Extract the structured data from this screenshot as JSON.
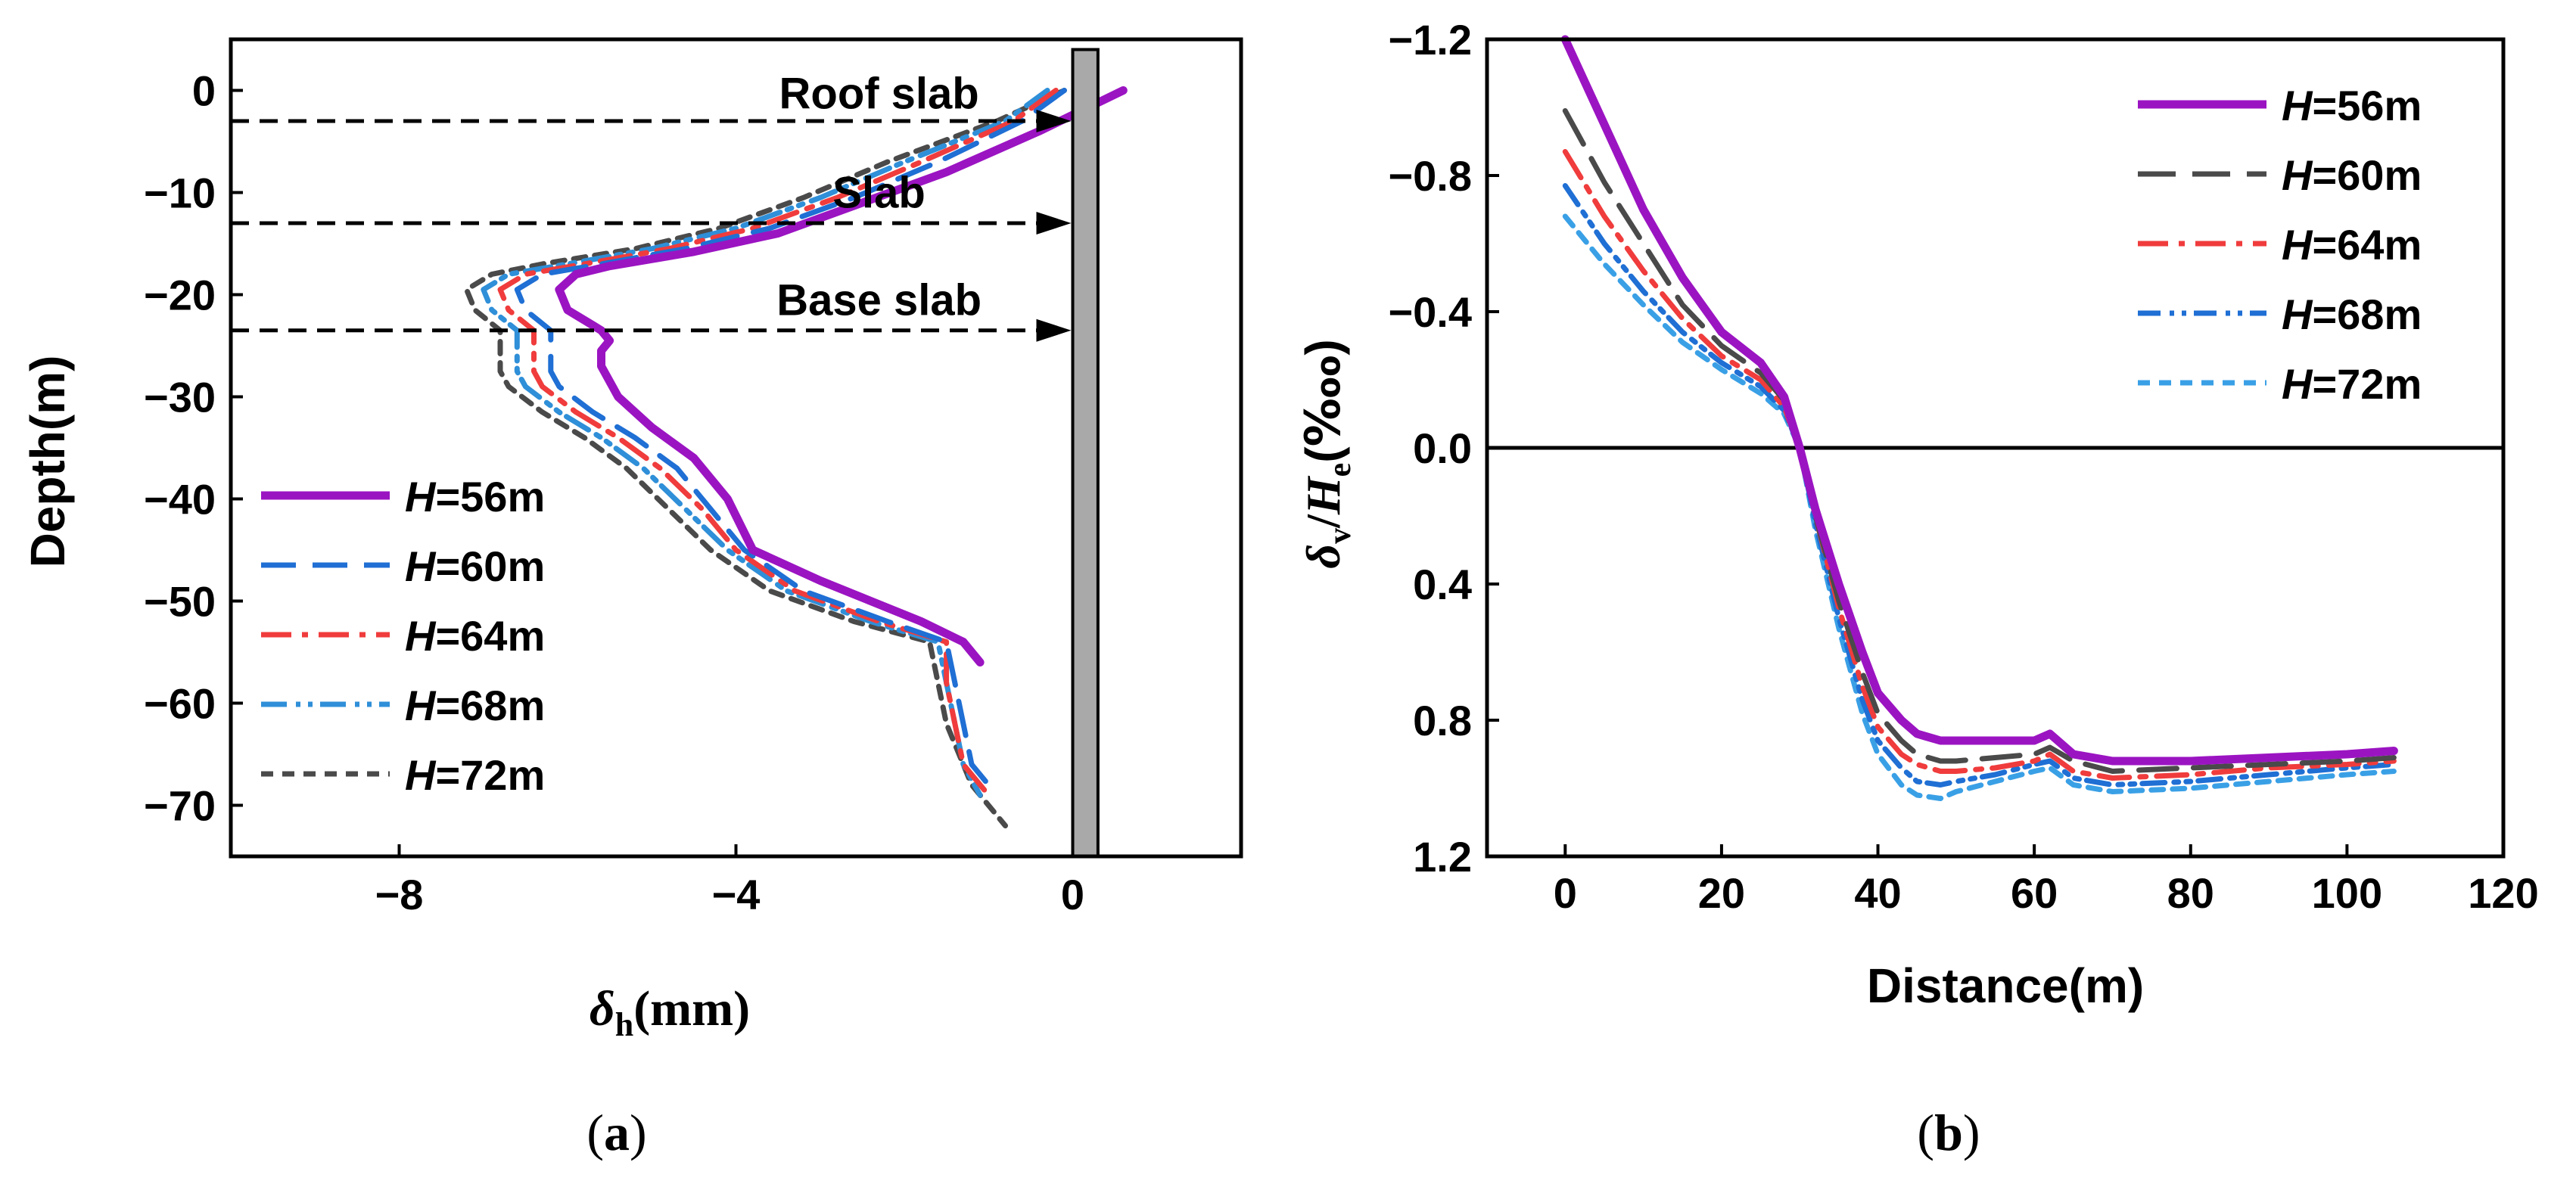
{
  "panels": {
    "a": {
      "caption_open": "(",
      "caption_letter": "a",
      "caption_close": ")"
    },
    "b": {
      "caption_open": "(",
      "caption_letter": "b",
      "caption_close": ")"
    }
  },
  "legend_prefix": "H",
  "colors": {
    "H56": "#9b14c2",
    "H60": "#1f6fd4",
    "H64": "#f03c3c",
    "H68": "#2f8fd8",
    "H72": "#4a4a4a",
    "H60_b": "#4a4a4a",
    "H64_b": "#f03c3c",
    "H68_b": "#1f6fd4",
    "H72_b": "#3aa0e6",
    "wall_fill": "#a9a9a9"
  },
  "chart_data": [
    {
      "type": "line",
      "panel": "a",
      "xlabel_symbol": "δ",
      "xlabel_sub": "h",
      "xlabel_unit": "(mm)",
      "ylabel": "Depth(m)",
      "xlim": [
        -10,
        2
      ],
      "ylim": [
        -75,
        5
      ],
      "xticks": [
        -8,
        -4,
        0
      ],
      "xtick_labels": [
        "−8",
        "−4",
        "0"
      ],
      "yticks": [
        0,
        -10,
        -20,
        -30,
        -40,
        -50,
        -60,
        -70
      ],
      "ytick_labels": [
        "0",
        "−10",
        "−20",
        "−30",
        "−40",
        "−50",
        "−60",
        "−70"
      ],
      "annotations": [
        {
          "text": "Roof slab",
          "label_x": -2.3,
          "label_y": -0.3,
          "arrow_y": -3
        },
        {
          "text": "Slab",
          "label_x": -2.3,
          "label_y": -10,
          "arrow_y": -13
        },
        {
          "text": "Base slab",
          "label_x": -2.3,
          "label_y": -20.5,
          "arrow_y": -23.5
        }
      ],
      "wall": {
        "x0": 0,
        "x1": 0.3,
        "top": 4,
        "bottom": -75
      },
      "legend_position": "bottom-left",
      "series": [
        {
          "name": "=56m",
          "key": "H56",
          "x": [
            0.6,
            -0.4,
            -1.5,
            -2.5,
            -3.5,
            -4.5,
            -5.5,
            -5.9,
            -6.1,
            -6.0,
            -5.7,
            -5.6,
            -5.5,
            -5.6,
            -5.6,
            -5.4,
            -5.0,
            -4.5,
            -4.1,
            -3.8,
            -3.0,
            -1.8,
            -1.3,
            -1.1
          ],
          "y": [
            0,
            -4,
            -8,
            -11,
            -14,
            -15.8,
            -17.2,
            -18,
            -19.5,
            -21.5,
            -23,
            -23.5,
            -24.5,
            -25.5,
            -27,
            -30,
            -33,
            -36,
            -40,
            -45,
            -48,
            -52,
            -54,
            -56
          ]
        },
        {
          "name": "=60m",
          "key": "H60",
          "x": [
            -0.1,
            -0.6,
            -1.6,
            -2.6,
            -3.6,
            -4.6,
            -5.6,
            -6.3,
            -6.6,
            -6.5,
            -6.2,
            -6.2,
            -6.2,
            -6.1,
            -5.7,
            -5.2,
            -4.7,
            -4.3,
            -3.9,
            -3.2,
            -2.2,
            -1.5,
            -1.4,
            -1.3,
            -1.2,
            -1.0
          ],
          "y": [
            0,
            -3,
            -7,
            -10.5,
            -13.5,
            -15.5,
            -17,
            -18,
            -19.5,
            -21.5,
            -23.5,
            -25.5,
            -27.5,
            -29,
            -31.5,
            -34,
            -37,
            -41,
            -45,
            -49,
            -52,
            -54,
            -58,
            -62,
            -66,
            -68
          ]
        },
        {
          "name": "=64m",
          "key": "H64",
          "x": [
            -0.2,
            -0.7,
            -1.8,
            -2.8,
            -3.8,
            -4.8,
            -5.8,
            -6.5,
            -6.8,
            -6.7,
            -6.4,
            -6.4,
            -6.4,
            -6.3,
            -5.9,
            -5.4,
            -4.9,
            -4.4,
            -4.0,
            -3.3,
            -2.3,
            -1.5,
            -1.5,
            -1.4,
            -1.3,
            -1.0
          ],
          "y": [
            0,
            -3,
            -7,
            -10.5,
            -13.5,
            -15.5,
            -17,
            -18,
            -19.5,
            -21.5,
            -23.5,
            -25.5,
            -27.5,
            -29,
            -31.5,
            -34,
            -37,
            -41,
            -45,
            -49,
            -52,
            -54,
            -58,
            -62,
            -66,
            -69
          ]
        },
        {
          "name": "=68m",
          "key": "H68",
          "x": [
            -0.3,
            -0.8,
            -2.0,
            -3.0,
            -4.0,
            -5.0,
            -6.0,
            -6.7,
            -7.0,
            -6.9,
            -6.6,
            -6.6,
            -6.6,
            -6.5,
            -6.1,
            -5.6,
            -5.1,
            -4.6,
            -4.1,
            -3.4,
            -2.4,
            -1.6,
            -1.5,
            -1.4,
            -1.3,
            -1.1
          ],
          "y": [
            0,
            -3,
            -7,
            -10.5,
            -13.5,
            -15.5,
            -17,
            -18,
            -19.5,
            -21.5,
            -23.5,
            -25.5,
            -27.5,
            -29,
            -31.5,
            -34,
            -37,
            -41,
            -45,
            -49,
            -52,
            -54,
            -58,
            -62,
            -66,
            -69
          ]
        },
        {
          "name": "=72m",
          "key": "H72",
          "x": [
            -0.1,
            -0.9,
            -2.2,
            -3.2,
            -4.2,
            -5.2,
            -6.3,
            -6.9,
            -7.2,
            -7.1,
            -6.8,
            -6.8,
            -6.8,
            -6.7,
            -6.3,
            -5.8,
            -5.3,
            -4.8,
            -4.3,
            -3.6,
            -2.6,
            -1.7,
            -1.6,
            -1.5,
            -1.2,
            -0.8
          ],
          "y": [
            0,
            -3,
            -7,
            -10.5,
            -13.5,
            -15.5,
            -17,
            -18,
            -19.5,
            -21.5,
            -23.5,
            -25.5,
            -27.5,
            -29,
            -31.5,
            -34,
            -37,
            -41,
            -45,
            -49,
            -52,
            -54,
            -58,
            -62,
            -68,
            -72
          ]
        }
      ]
    },
    {
      "type": "line",
      "panel": "b",
      "xlabel": "Distance(m)",
      "ylabel_num_symbol": "δ",
      "ylabel_num_sub": "v",
      "ylabel_slash": "/",
      "ylabel_den_symbol": "H",
      "ylabel_den_sub": "e",
      "ylabel_unit": "(‱)",
      "xlim": [
        -10,
        120
      ],
      "ylim": [
        -1.2,
        1.2
      ],
      "y_inverted": true,
      "xticks": [
        0,
        20,
        40,
        60,
        80,
        100,
        120
      ],
      "xtick_labels": [
        "0",
        "20",
        "40",
        "60",
        "80",
        "100",
        "120"
      ],
      "yticks": [
        -1.2,
        -0.8,
        -0.4,
        0.0,
        0.4,
        0.8,
        1.2
      ],
      "ytick_labels": [
        "−1.2",
        "−0.8",
        "−0.4",
        "0.0",
        "0.4",
        "0.8",
        "1.2"
      ],
      "zero_line": true,
      "legend_position": "top-right",
      "series": [
        {
          "name": "=56m",
          "key": "H56",
          "x": [
            0,
            5,
            10,
            15,
            20,
            25,
            28,
            30,
            32,
            35,
            38,
            40,
            43,
            45,
            48,
            50,
            55,
            60,
            62,
            65,
            70,
            80,
            90,
            100,
            106
          ],
          "y": [
            -1.2,
            -0.95,
            -0.7,
            -0.5,
            -0.34,
            -0.25,
            -0.15,
            0.0,
            0.18,
            0.4,
            0.6,
            0.72,
            0.8,
            0.84,
            0.86,
            0.86,
            0.86,
            0.86,
            0.84,
            0.9,
            0.92,
            0.92,
            0.91,
            0.9,
            0.89
          ]
        },
        {
          "name": "=60m",
          "key": "H60",
          "x": [
            0,
            5,
            10,
            15,
            20,
            25,
            28,
            30,
            32,
            35,
            38,
            40,
            43,
            45,
            48,
            50,
            55,
            60,
            62,
            65,
            70,
            80,
            90,
            100,
            106
          ],
          "y": [
            -0.99,
            -0.78,
            -0.6,
            -0.42,
            -0.3,
            -0.22,
            -0.14,
            0.0,
            0.2,
            0.45,
            0.66,
            0.78,
            0.86,
            0.9,
            0.92,
            0.92,
            0.91,
            0.9,
            0.88,
            0.92,
            0.95,
            0.94,
            0.93,
            0.92,
            0.91
          ]
        },
        {
          "name": "=64m",
          "key": "H64",
          "x": [
            0,
            5,
            10,
            15,
            20,
            25,
            28,
            30,
            32,
            35,
            38,
            40,
            43,
            45,
            48,
            50,
            55,
            60,
            62,
            65,
            70,
            80,
            90,
            100,
            106
          ],
          "y": [
            -0.87,
            -0.68,
            -0.52,
            -0.38,
            -0.27,
            -0.2,
            -0.12,
            0.0,
            0.2,
            0.47,
            0.7,
            0.82,
            0.9,
            0.93,
            0.95,
            0.95,
            0.94,
            0.92,
            0.9,
            0.95,
            0.97,
            0.96,
            0.94,
            0.93,
            0.92
          ]
        },
        {
          "name": "=68m",
          "key": "H68",
          "x": [
            0,
            5,
            10,
            15,
            20,
            25,
            28,
            30,
            32,
            35,
            38,
            40,
            43,
            45,
            48,
            50,
            55,
            60,
            62,
            65,
            70,
            80,
            90,
            100,
            106
          ],
          "y": [
            -0.77,
            -0.6,
            -0.46,
            -0.34,
            -0.25,
            -0.18,
            -0.11,
            0.0,
            0.22,
            0.5,
            0.74,
            0.86,
            0.94,
            0.98,
            0.99,
            0.98,
            0.96,
            0.93,
            0.92,
            0.97,
            0.99,
            0.98,
            0.96,
            0.94,
            0.93
          ]
        },
        {
          "name": "=72m",
          "key": "H72",
          "x": [
            0,
            5,
            10,
            15,
            20,
            25,
            28,
            30,
            32,
            35,
            38,
            40,
            43,
            45,
            48,
            50,
            55,
            60,
            62,
            65,
            70,
            80,
            90,
            100,
            106
          ],
          "y": [
            -0.68,
            -0.54,
            -0.42,
            -0.31,
            -0.23,
            -0.16,
            -0.1,
            0.0,
            0.24,
            0.53,
            0.78,
            0.9,
            0.99,
            1.02,
            1.03,
            1.01,
            0.98,
            0.95,
            0.94,
            0.99,
            1.01,
            1.0,
            0.98,
            0.96,
            0.95
          ]
        }
      ]
    }
  ]
}
